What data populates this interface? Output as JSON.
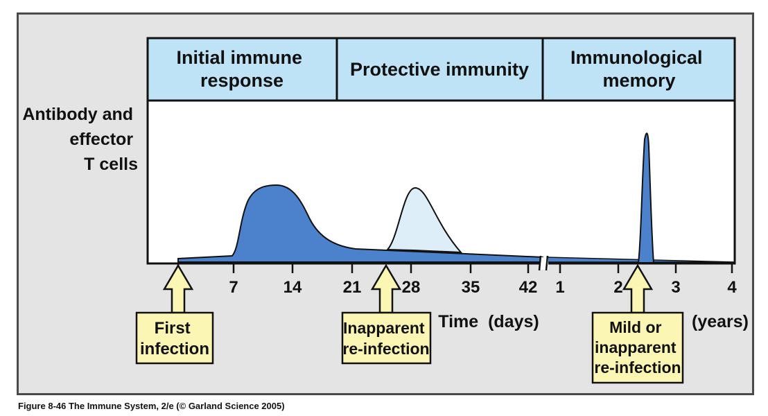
{
  "phases": [
    {
      "line1": "Initial immune",
      "line2": "response"
    },
    {
      "line1": "Protective immunity",
      "line2": ""
    },
    {
      "line1": "Immunological",
      "line2": "memory"
    }
  ],
  "y_axis_label": [
    "Antibody and",
    "effector",
    "T cells"
  ],
  "days_ticks": [
    "7",
    "14",
    "21",
    "28",
    "35",
    "42"
  ],
  "years_ticks": [
    "1",
    "2",
    "3",
    "4"
  ],
  "x_label_days": "Time  (days)",
  "x_label_years": "(years)",
  "events": [
    {
      "lines": [
        "First",
        "infection"
      ]
    },
    {
      "lines": [
        "Inapparent",
        "re-infection"
      ]
    },
    {
      "lines": [
        "Mild or",
        "inapparent",
        "re-infection"
      ]
    }
  ],
  "caption": "Figure 8-46  The Immune System, 2/e (© Garland Science 2005)",
  "colors": {
    "header_fill": "#bfe3f6",
    "primary_response": "#4c82cc",
    "secondary_response": "#ddeef9",
    "callout_fill": "#fbf6b4",
    "panel": "#e4e4e4"
  }
}
